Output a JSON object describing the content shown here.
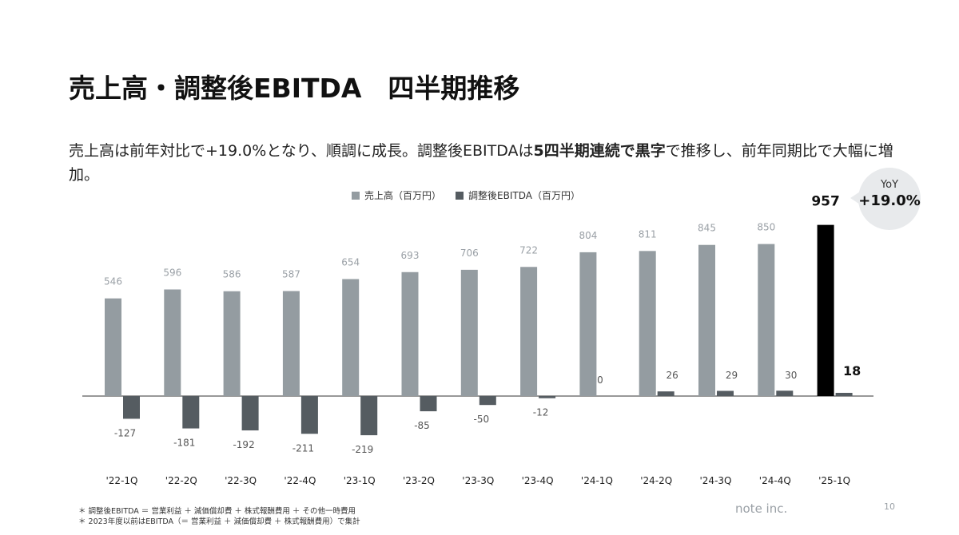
{
  "title": "売上高・調整後EBITDA　四半期推移",
  "subtitle": {
    "part1": "売上高は前年対比で+19.0%となり、順調に成長。調整後EBITDAは",
    "bold": "5四半期連続で黒字",
    "part2": "で推移し、前年同期比で大幅に増加。"
  },
  "colors": {
    "revenue": "#949ca1",
    "ebitda": "#555c61",
    "highlight": "#000000",
    "axis": "#333333",
    "revenue_label": "#9aa0a6",
    "ebitda_label": "#555555"
  },
  "yoy": {
    "label": "YoY",
    "value": "+19.0%"
  },
  "chart_data": {
    "type": "bar",
    "categories": [
      "'22-1Q",
      "'22-2Q",
      "'22-3Q",
      "'22-4Q",
      "'23-1Q",
      "'23-2Q",
      "'23-3Q",
      "'23-4Q",
      "'24-1Q",
      "'24-2Q",
      "'24-3Q",
      "'24-4Q",
      "'25-1Q"
    ],
    "series": [
      {
        "name": "売上高（百万円）",
        "values": [
          546,
          596,
          586,
          587,
          654,
          693,
          706,
          722,
          804,
          811,
          845,
          850,
          957
        ]
      },
      {
        "name": "調整後EBITDA（百万円）",
        "values": [
          -127,
          -181,
          -192,
          -211,
          -219,
          -85,
          -50,
          -12,
          0,
          26,
          29,
          30,
          18
        ]
      }
    ],
    "highlight_index": 12,
    "xlabel": "",
    "ylabel": "",
    "grid": false,
    "legend": "top-center"
  },
  "footnotes": [
    "＊ 調整後EBITDA ＝ 営業利益 ＋ 減価償却費 ＋ 株式報酬費用 ＋ その他一時費用",
    "＊ 2023年度以前はEBITDA（＝ 営業利益 ＋ 減価償却費 ＋ 株式報酬費用）で集計"
  ],
  "brand": "note inc.",
  "page_number": "10"
}
